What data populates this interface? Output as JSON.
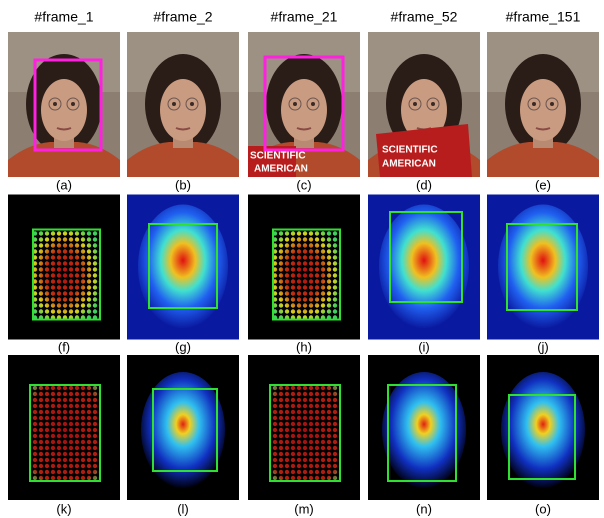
{
  "figure": {
    "frame_labels": [
      "#frame_1",
      "#frame_2",
      "#frame_21",
      "#frame_52",
      "#frame_151"
    ],
    "magazine_text": [
      "SCIENTIFIC",
      "AMERICAN"
    ],
    "rows": [
      {
        "captions": [
          "(a)",
          "(b)",
          "(c)",
          "(d)",
          "(e)"
        ]
      },
      {
        "captions": [
          "(f)",
          "(g)",
          "(h)",
          "(i)",
          "(j)"
        ]
      },
      {
        "captions": [
          "(k)",
          "(l)",
          "(m)",
          "(n)",
          "(o)"
        ]
      }
    ]
  }
}
